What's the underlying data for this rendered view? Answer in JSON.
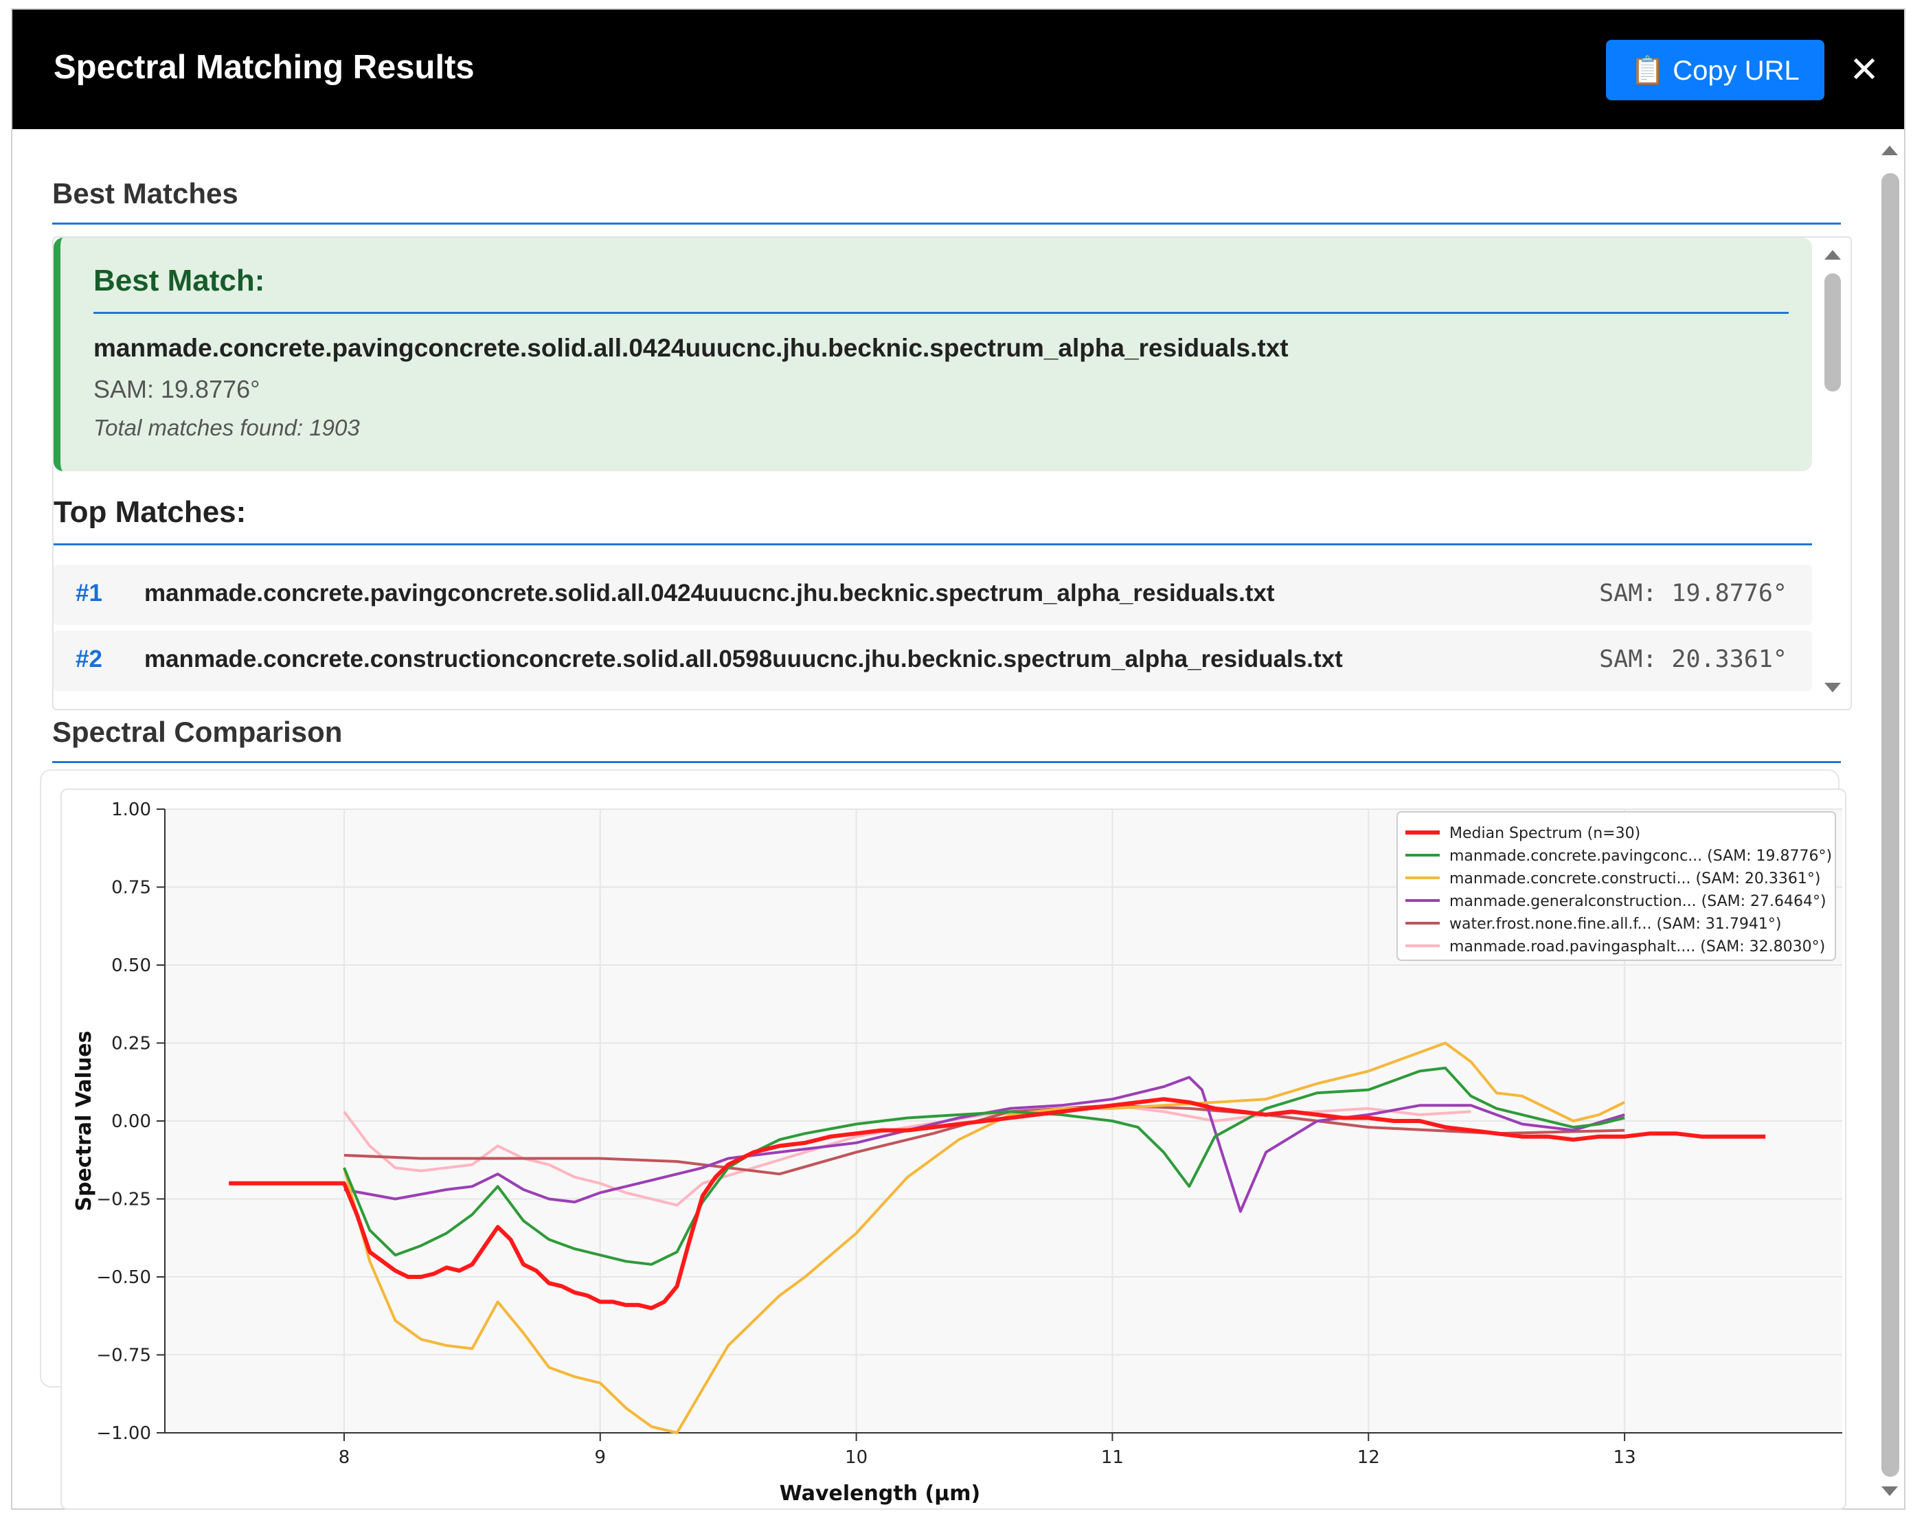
{
  "header": {
    "title": "Spectral Matching Results",
    "copy_button_icon": "clipboard-icon",
    "copy_button_label": "📋 Copy URL",
    "close_icon": "close-icon",
    "close_glyph": "✕"
  },
  "best_matches": {
    "section_title": "Best Matches",
    "best_title": "Best Match:",
    "best_name": "manmade.concrete.pavingconcrete.solid.all.0424uuucnc.jhu.becknic.spectrum_alpha_residuals.txt",
    "best_sam": "SAM: 19.8776°",
    "total_matches": "Total matches found: 1903",
    "top_title": "Top Matches:",
    "rows": [
      {
        "rank": "#1",
        "name": "manmade.concrete.pavingconcrete.solid.all.0424uuucnc.jhu.becknic.spectrum_alpha_residuals.txt",
        "sam": "SAM: 19.8776°"
      },
      {
        "rank": "#2",
        "name": "manmade.concrete.constructionconcrete.solid.all.0598uuucnc.jhu.becknic.spectrum_alpha_residuals.txt",
        "sam": "SAM: 20.3361°"
      }
    ]
  },
  "comparison": {
    "section_title": "Spectral Comparison"
  },
  "colors": {
    "accent": "#0a7cff",
    "rule": "#1f77d8",
    "best_bg": "#e3f0e4",
    "best_border": "#2ea24a"
  },
  "chart_data": {
    "type": "line",
    "xlabel": "Wavelength (µm)",
    "ylabel": "Spectral Values",
    "xlim": [
      7.3,
      13.85
    ],
    "ylim": [
      -1.0,
      1.0
    ],
    "xticks": [
      "8",
      "9",
      "10",
      "11",
      "12",
      "13"
    ],
    "yticks": [
      "1.00",
      "0.75",
      "0.50",
      "0.25",
      "0.00",
      "−0.25",
      "−0.50",
      "−0.75",
      "−1.00"
    ],
    "grid": true,
    "legend_position": "top-right",
    "series": [
      {
        "name": "Median Spectrum (n=30)",
        "color": "#ff1a1a",
        "x": [
          7.55,
          8.0,
          8.05,
          8.1,
          8.15,
          8.2,
          8.25,
          8.3,
          8.35,
          8.4,
          8.45,
          8.5,
          8.55,
          8.6,
          8.65,
          8.7,
          8.75,
          8.8,
          8.85,
          8.9,
          8.95,
          9.0,
          9.05,
          9.1,
          9.15,
          9.2,
          9.25,
          9.3,
          9.35,
          9.4,
          9.45,
          9.5,
          9.6,
          9.7,
          9.8,
          9.9,
          10.0,
          10.1,
          10.2,
          10.3,
          10.4,
          10.5,
          10.6,
          10.7,
          10.8,
          10.9,
          11.0,
          11.1,
          11.2,
          11.3,
          11.4,
          11.5,
          11.6,
          11.7,
          11.8,
          11.9,
          12.0,
          12.1,
          12.2,
          12.3,
          12.4,
          12.5,
          12.6,
          12.7,
          12.8,
          12.9,
          13.0,
          13.1,
          13.2,
          13.3,
          13.55
        ],
        "y": [
          -0.2,
          -0.2,
          -0.3,
          -0.42,
          -0.45,
          -0.48,
          -0.5,
          -0.5,
          -0.49,
          -0.47,
          -0.48,
          -0.46,
          -0.4,
          -0.34,
          -0.38,
          -0.46,
          -0.48,
          -0.52,
          -0.53,
          -0.55,
          -0.56,
          -0.58,
          -0.58,
          -0.59,
          -0.59,
          -0.6,
          -0.58,
          -0.53,
          -0.38,
          -0.24,
          -0.18,
          -0.14,
          -0.1,
          -0.08,
          -0.07,
          -0.05,
          -0.04,
          -0.03,
          -0.03,
          -0.02,
          -0.01,
          0.0,
          0.01,
          0.02,
          0.03,
          0.04,
          0.05,
          0.06,
          0.07,
          0.06,
          0.04,
          0.03,
          0.02,
          0.03,
          0.02,
          0.01,
          0.01,
          0.0,
          0.0,
          -0.02,
          -0.03,
          -0.04,
          -0.05,
          -0.05,
          -0.06,
          -0.05,
          -0.05,
          -0.04,
          -0.04,
          -0.05,
          -0.05
        ]
      },
      {
        "name": "manmade.concrete.pavingconc... (SAM: 19.8776°)",
        "color": "#2e9b3a",
        "x": [
          8.0,
          8.1,
          8.2,
          8.3,
          8.4,
          8.5,
          8.6,
          8.7,
          8.8,
          8.9,
          9.0,
          9.1,
          9.2,
          9.3,
          9.4,
          9.5,
          9.6,
          9.7,
          9.8,
          10.0,
          10.2,
          10.4,
          10.6,
          10.8,
          11.0,
          11.1,
          11.2,
          11.3,
          11.4,
          11.6,
          11.8,
          12.0,
          12.1,
          12.2,
          12.3,
          12.4,
          12.5,
          12.6,
          12.7,
          12.8,
          12.9,
          13.0
        ],
        "y": [
          -0.15,
          -0.35,
          -0.43,
          -0.4,
          -0.36,
          -0.3,
          -0.21,
          -0.32,
          -0.38,
          -0.41,
          -0.43,
          -0.45,
          -0.46,
          -0.42,
          -0.26,
          -0.15,
          -0.1,
          -0.06,
          -0.04,
          -0.01,
          0.01,
          0.02,
          0.03,
          0.02,
          0.0,
          -0.02,
          -0.1,
          -0.21,
          -0.05,
          0.04,
          0.09,
          0.1,
          0.13,
          0.16,
          0.17,
          0.08,
          0.04,
          0.02,
          0.0,
          -0.02,
          -0.01,
          0.01
        ]
      },
      {
        "name": "manmade.concrete.constructi... (SAM: 20.3361°)",
        "color": "#f5b73b",
        "x": [
          8.0,
          8.1,
          8.2,
          8.3,
          8.4,
          8.5,
          8.6,
          8.7,
          8.8,
          8.9,
          9.0,
          9.1,
          9.2,
          9.3,
          9.4,
          9.5,
          9.6,
          9.7,
          9.8,
          10.0,
          10.2,
          10.4,
          10.6,
          10.8,
          11.0,
          11.2,
          11.4,
          11.6,
          11.8,
          12.0,
          12.2,
          12.3,
          12.4,
          12.5,
          12.6,
          12.7,
          12.8,
          12.9,
          13.0
        ],
        "y": [
          -0.15,
          -0.45,
          -0.64,
          -0.7,
          -0.72,
          -0.73,
          -0.58,
          -0.68,
          -0.79,
          -0.82,
          -0.84,
          -0.92,
          -0.98,
          -1.0,
          -0.86,
          -0.72,
          -0.64,
          -0.56,
          -0.5,
          -0.36,
          -0.18,
          -0.06,
          0.02,
          0.04,
          0.04,
          0.05,
          0.06,
          0.07,
          0.12,
          0.16,
          0.22,
          0.25,
          0.19,
          0.09,
          0.08,
          0.04,
          0.0,
          0.02,
          0.06
        ]
      },
      {
        "name": "manmade.generalconstruction... (SAM: 27.6464°)",
        "color": "#9b3fb5",
        "x": [
          8.0,
          8.2,
          8.4,
          8.5,
          8.6,
          8.7,
          8.8,
          8.9,
          9.0,
          9.2,
          9.4,
          9.5,
          9.6,
          9.8,
          10.0,
          10.2,
          10.4,
          10.6,
          10.8,
          11.0,
          11.2,
          11.3,
          11.35,
          11.5,
          11.6,
          11.8,
          12.0,
          12.2,
          12.4,
          12.6,
          12.8,
          13.0
        ],
        "y": [
          -0.22,
          -0.25,
          -0.22,
          -0.21,
          -0.17,
          -0.22,
          -0.25,
          -0.26,
          -0.23,
          -0.19,
          -0.15,
          -0.12,
          -0.11,
          -0.09,
          -0.07,
          -0.03,
          0.01,
          0.04,
          0.05,
          0.07,
          0.11,
          0.14,
          0.1,
          -0.29,
          -0.1,
          0.0,
          0.02,
          0.05,
          0.05,
          -0.01,
          -0.03,
          0.02
        ]
      },
      {
        "name": "water.frost.none.fine.all.f... (SAM: 31.7941°)",
        "color": "#c0555a",
        "x": [
          8.0,
          8.3,
          8.6,
          9.0,
          9.3,
          9.5,
          9.7,
          10.0,
          10.3,
          10.6,
          11.0,
          11.3,
          11.6,
          12.0,
          12.5,
          13.0
        ],
        "y": [
          -0.11,
          -0.12,
          -0.12,
          -0.12,
          -0.13,
          -0.15,
          -0.17,
          -0.1,
          -0.04,
          0.03,
          0.05,
          0.04,
          0.02,
          -0.02,
          -0.04,
          -0.03
        ]
      },
      {
        "name": "manmade.road.pavingasphalt.... (SAM: 32.8030°)",
        "color": "#ffb6c1",
        "x": [
          8.0,
          8.1,
          8.2,
          8.3,
          8.4,
          8.5,
          8.6,
          8.7,
          8.8,
          8.9,
          9.0,
          9.1,
          9.2,
          9.3,
          9.4,
          9.6,
          9.8,
          10.0,
          10.2,
          10.5,
          10.8,
          11.0,
          11.2,
          11.4,
          11.6,
          11.8,
          12.0,
          12.2,
          12.4
        ],
        "y": [
          0.03,
          -0.08,
          -0.15,
          -0.16,
          -0.15,
          -0.14,
          -0.08,
          -0.12,
          -0.14,
          -0.18,
          -0.2,
          -0.23,
          -0.25,
          -0.27,
          -0.2,
          -0.15,
          -0.1,
          -0.05,
          -0.02,
          0.02,
          0.04,
          0.05,
          0.03,
          0.0,
          0.02,
          0.03,
          0.04,
          0.02,
          0.03
        ]
      }
    ]
  }
}
